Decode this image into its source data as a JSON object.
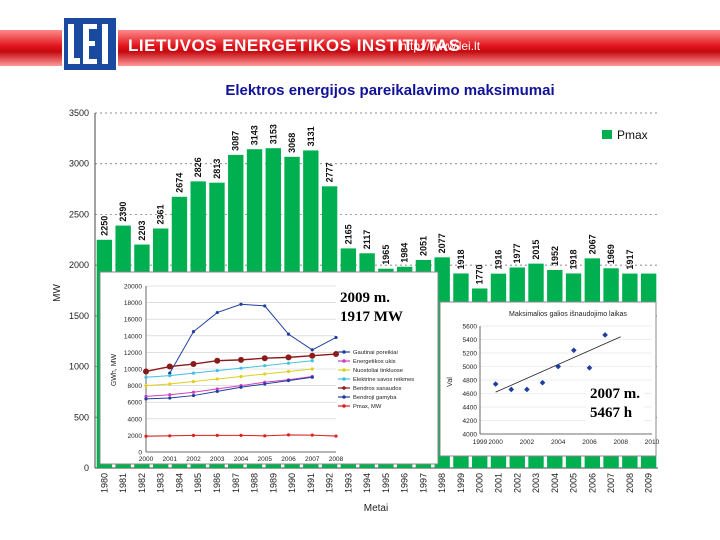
{
  "header": {
    "org_name": "LIETUVOS ENERGETIKOS INSTITUTAS",
    "url": "http://www.lei.lt",
    "logo_text": "LEI",
    "colors": {
      "band": "#e0141b",
      "logo": "#1a4aa0"
    }
  },
  "annotations": {
    "a2009": [
      "2009 m.",
      "1917 MW"
    ],
    "a2007": [
      "2007 m.",
      "5467 h"
    ]
  },
  "chart_data": [
    {
      "type": "bar",
      "title": "Elektros energijos pareikalavimo maksimumai",
      "xlabel": "Metai",
      "ylabel": "MW",
      "ylim": [
        0,
        3500
      ],
      "yticks": [
        0,
        500,
        1000,
        1500,
        2000,
        2500,
        3000,
        3500
      ],
      "legend": "Pmax",
      "legend_position": "top-right",
      "color": "#00b050",
      "categories": [
        "1980",
        "1981",
        "1982",
        "1983",
        "1984",
        "1985",
        "1986",
        "1987",
        "1988",
        "1989",
        "1990",
        "1991",
        "1992",
        "1993",
        "1994",
        "1995",
        "1996",
        "1997",
        "1998",
        "1999",
        "2000",
        "2001",
        "2002",
        "2003",
        "2004",
        "2005",
        "2006",
        "2007",
        "2008",
        "2009"
      ],
      "values": [
        2250,
        2390,
        2203,
        2361,
        2674,
        2826,
        2813,
        3087,
        3143,
        3153,
        3068,
        3131,
        2777,
        2165,
        2117,
        1965,
        1984,
        2051,
        2077,
        1918,
        1770,
        1916,
        1977,
        2015,
        1952,
        1918,
        2067,
        1969,
        1917,
        1917
      ],
      "labels": [
        "2250",
        "2390",
        "2203",
        "2361",
        "2674",
        "2826",
        "2813",
        "3087",
        "3143",
        "3153",
        "3068",
        "3131",
        "2777",
        "2165",
        "2117",
        "1965",
        "1984",
        "2051",
        "2077",
        "1918",
        "1770",
        "1916",
        "1977",
        "2015",
        "1952",
        "1918",
        "2067",
        "1969",
        "1917"
      ],
      "xtick_labels": [
        "1980",
        "1981",
        "1982",
        "1983",
        "1984",
        "1985",
        "1986",
        "1987",
        "1988",
        "1989",
        "1990",
        "1991",
        "1992",
        "1993",
        "1994",
        "1995",
        "1996",
        "1997",
        "1998",
        "1999",
        "2000",
        "2001",
        "2002",
        "2003",
        "2004",
        "2005",
        "2006",
        "2007",
        "2008",
        "2009"
      ]
    },
    {
      "type": "line",
      "ylabel": "GWh, MW",
      "ylim": [
        0,
        20000
      ],
      "yticks": [
        0,
        2000,
        4000,
        6000,
        8000,
        10000,
        12000,
        14000,
        16000,
        18000,
        20000
      ],
      "x": [
        "2000",
        "2001",
        "2002",
        "2003",
        "2004",
        "2005",
        "2006",
        "2007",
        "2008"
      ],
      "series": [
        {
          "name": "Gautinai poreikiai",
          "color": "#1f3f9f",
          "values": [
            null,
            9500,
            14500,
            16800,
            17800,
            17600,
            14200,
            12300,
            13800
          ]
        },
        {
          "name": "Energetikos ukis",
          "color": "#d040c0",
          "values": [
            6700,
            6900,
            7200,
            7600,
            8000,
            8400,
            8700,
            9100,
            null
          ]
        },
        {
          "name": "Nuostoliai tinkluose",
          "color": "#e0d020",
          "values": [
            8000,
            8200,
            8500,
            8800,
            9100,
            9400,
            9700,
            10000,
            null
          ]
        },
        {
          "name": "Elektrine savos reikmes",
          "color": "#40c0e0",
          "values": [
            9000,
            9200,
            9500,
            9800,
            10100,
            10400,
            10700,
            11000,
            null
          ]
        },
        {
          "name": "Bendros sanaudos",
          "color": "#8b1a1a",
          "values": [
            9700,
            10300,
            10600,
            11000,
            11100,
            11300,
            11400,
            11600,
            11800
          ]
        },
        {
          "name": "Bendroji gamyba",
          "color": "#1f3f9f",
          "values": [
            6400,
            6500,
            6800,
            7300,
            7800,
            8200,
            8600,
            9000,
            null
          ]
        },
        {
          "name": "Pmax, MW",
          "color": "#e02020",
          "values": [
            1900,
            1950,
            2000,
            2010,
            2000,
            1950,
            2060,
            2040,
            1920
          ]
        }
      ],
      "legend": [
        "Gautinai poreikiai",
        "Energetikos ukis",
        "Nuostoliai tinkluose",
        "Elektrine savos reikmes",
        "Bendros sanaudos",
        "Bendroji gamyba",
        "Pmax, MW"
      ],
      "xtick_labels": [
        "2000",
        "2001",
        "2002",
        "2003",
        "2004",
        "2005",
        "2006",
        "2007",
        "2008"
      ]
    },
    {
      "type": "scatter",
      "title": "Maksimalios galios išnaudojimo laikas",
      "ylabel": "Val",
      "ylim": [
        4000,
        5600
      ],
      "yticks": [
        4000,
        4200,
        4400,
        4600,
        4800,
        5000,
        5200,
        5400,
        5600
      ],
      "ytick_labels": [
        "4000",
        "4200",
        "4400",
        "4600",
        "4800",
        "5000",
        "5200",
        "5400",
        "5600"
      ],
      "xlim": [
        1999,
        2010
      ],
      "xtick_labels": [
        "1999",
        "2000",
        "2002",
        "2004",
        "2006",
        "2008",
        "2010"
      ],
      "x": [
        2000,
        2001,
        2002,
        2003,
        2004,
        2005,
        2006,
        2007
      ],
      "values": [
        4740,
        4660,
        4660,
        4760,
        5000,
        5240,
        4980,
        5467
      ],
      "trendline": [
        [
          2000,
          4620
        ],
        [
          2008,
          5440
        ]
      ]
    }
  ]
}
